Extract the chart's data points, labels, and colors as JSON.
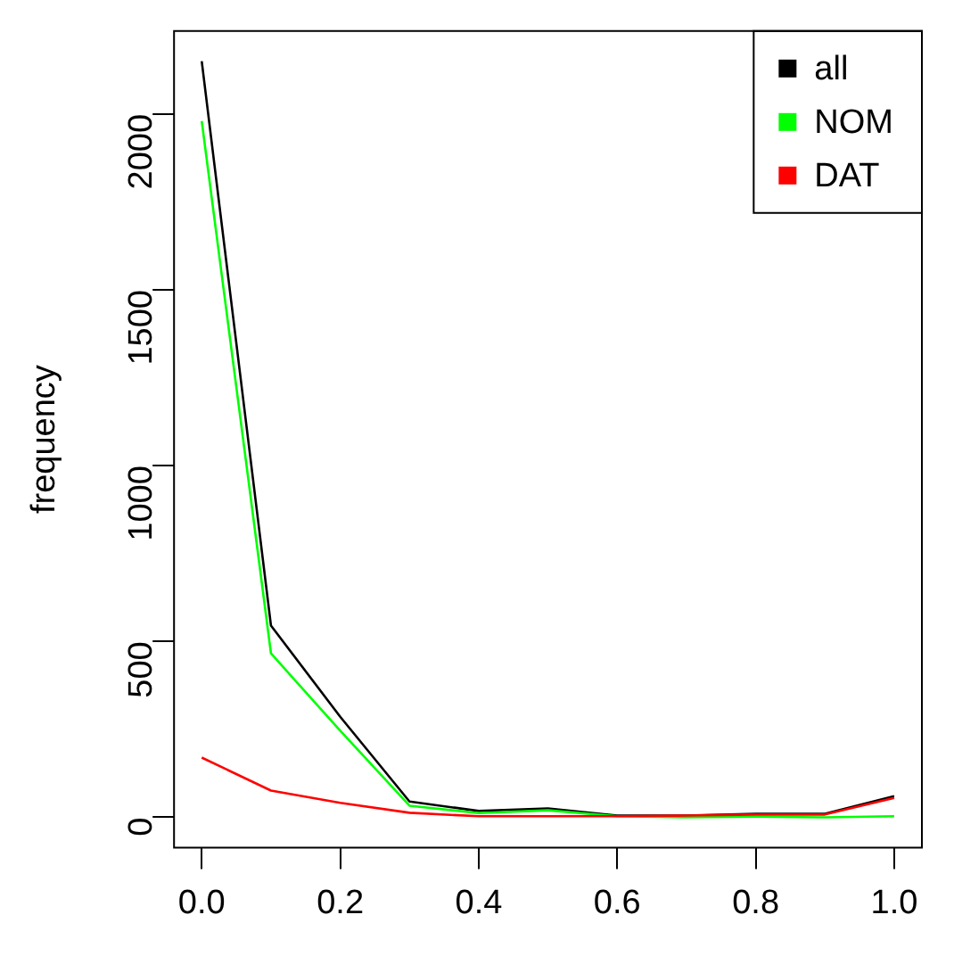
{
  "chart_data": {
    "type": "line",
    "ylabel": "frequency",
    "x": [
      0,
      0.1,
      0.2,
      0.3,
      0.4,
      0.5,
      0.6,
      0.7,
      0.8,
      0.9,
      1.0
    ],
    "series": [
      {
        "name": "all",
        "color": "#000000",
        "values": [
          2150,
          545,
          286,
          45,
          18,
          25,
          5,
          5,
          10,
          10,
          60
        ]
      },
      {
        "name": "NOM",
        "color": "#00ff00",
        "values": [
          1980,
          466,
          246,
          33,
          12,
          20,
          3,
          0,
          2,
          0,
          3
        ]
      },
      {
        "name": "DAT",
        "color": "#ff0000",
        "values": [
          170,
          76,
          41,
          13,
          3,
          3,
          3,
          5,
          8,
          8,
          55
        ]
      }
    ],
    "xlim": [
      -0.04,
      1.04
    ],
    "xticks": [
      {
        "value": 0,
        "label": "0.0"
      },
      {
        "value": 0.2,
        "label": "0.2"
      },
      {
        "value": 0.4,
        "label": "0.4"
      },
      {
        "value": 0.6,
        "label": "0.6"
      },
      {
        "value": 0.8,
        "label": "0.8"
      },
      {
        "value": 1,
        "label": "1.0"
      }
    ],
    "ylim": [
      -86,
      2236
    ],
    "yticks": [
      0,
      500,
      1000,
      1500,
      2000
    ],
    "grid": false,
    "legend": "top right",
    "marker": "none",
    "line_style": "solid"
  }
}
